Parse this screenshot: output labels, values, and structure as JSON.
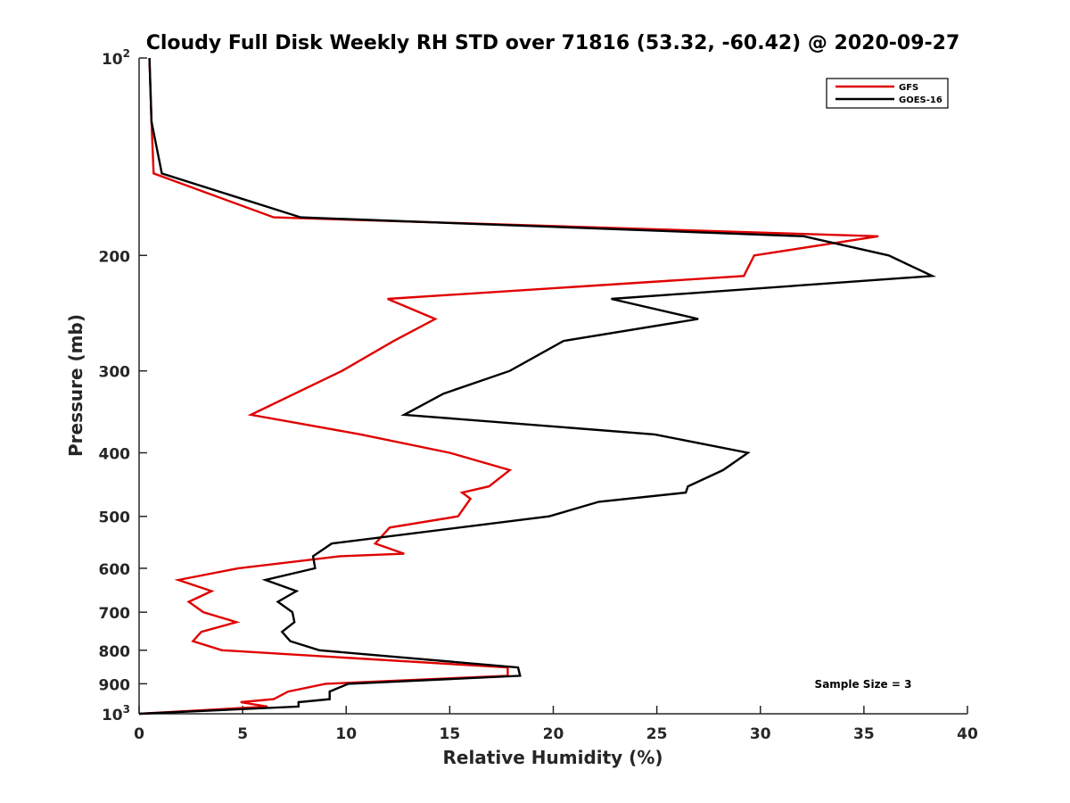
{
  "chart_data": {
    "type": "line",
    "title": "Cloudy Full Disk Weekly RH STD over 71816 (53.32, -60.42) @ 2020-09-27",
    "xlabel": "Relative Humidity (%)",
    "ylabel": "Pressure (mb)",
    "xlim": [
      0,
      40
    ],
    "ylim": [
      100,
      1000
    ],
    "y_scale": "log",
    "y_reversed": true,
    "grid": false,
    "legend_position": "top-right",
    "x_ticks": [
      "0",
      "5",
      "10",
      "15",
      "20",
      "25",
      "30",
      "35",
      "40"
    ],
    "y_ticks": [
      {
        "value": 100,
        "base": "10",
        "exp": "2"
      },
      {
        "value": 200,
        "label": "200"
      },
      {
        "value": 300,
        "label": "300"
      },
      {
        "value": 400,
        "label": "400"
      },
      {
        "value": 500,
        "label": "500"
      },
      {
        "value": 600,
        "label": "600"
      },
      {
        "value": 700,
        "label": "700"
      },
      {
        "value": 800,
        "label": "800"
      },
      {
        "value": 900,
        "label": "900"
      },
      {
        "value": 1000,
        "base": "10",
        "exp": "3"
      }
    ],
    "annotation": "Sample Size = 3",
    "series": [
      {
        "name": "GFS",
        "color": "#e00000",
        "points": [
          [
            0.5,
            100
          ],
          [
            0.6,
            125
          ],
          [
            0.7,
            150
          ],
          [
            6.5,
            175
          ],
          [
            35.7,
            187
          ],
          [
            29.7,
            200
          ],
          [
            29.2,
            215
          ],
          [
            12.0,
            233
          ],
          [
            14.3,
            250
          ],
          [
            12.3,
            270
          ],
          [
            9.8,
            300
          ],
          [
            5.4,
            350
          ],
          [
            10.7,
            375
          ],
          [
            15.0,
            400
          ],
          [
            17.9,
            425
          ],
          [
            16.9,
            450
          ],
          [
            15.6,
            460
          ],
          [
            16.0,
            470
          ],
          [
            15.4,
            500
          ],
          [
            12.1,
            520
          ],
          [
            11.4,
            550
          ],
          [
            12.8,
            570
          ],
          [
            9.7,
            575
          ],
          [
            4.8,
            600
          ],
          [
            1.9,
            625
          ],
          [
            3.5,
            650
          ],
          [
            2.4,
            675
          ],
          [
            3.1,
            700
          ],
          [
            4.7,
            725
          ],
          [
            3.0,
            750
          ],
          [
            2.6,
            775
          ],
          [
            4.0,
            800
          ],
          [
            17.8,
            850
          ],
          [
            17.8,
            875
          ],
          [
            9.0,
            900
          ],
          [
            7.2,
            925
          ],
          [
            6.5,
            950
          ],
          [
            4.9,
            960
          ],
          [
            6.2,
            975
          ],
          [
            0.0,
            1000
          ]
        ]
      },
      {
        "name": "GOES-16",
        "color": "#000000",
        "points": [
          [
            0.5,
            100
          ],
          [
            0.6,
            125
          ],
          [
            1.1,
            150
          ],
          [
            7.8,
            175
          ],
          [
            32.1,
            187
          ],
          [
            36.2,
            200
          ],
          [
            38.3,
            215
          ],
          [
            22.8,
            233
          ],
          [
            27.0,
            250
          ],
          [
            20.5,
            270
          ],
          [
            17.9,
            300
          ],
          [
            14.7,
            325
          ],
          [
            12.8,
            350
          ],
          [
            24.9,
            375
          ],
          [
            29.4,
            400
          ],
          [
            28.2,
            425
          ],
          [
            26.5,
            450
          ],
          [
            26.4,
            460
          ],
          [
            22.2,
            475
          ],
          [
            19.8,
            500
          ],
          [
            9.3,
            550
          ],
          [
            8.4,
            575
          ],
          [
            8.5,
            600
          ],
          [
            6.1,
            625
          ],
          [
            7.6,
            650
          ],
          [
            6.7,
            675
          ],
          [
            7.4,
            700
          ],
          [
            7.5,
            725
          ],
          [
            6.9,
            750
          ],
          [
            7.3,
            775
          ],
          [
            8.7,
            800
          ],
          [
            18.3,
            850
          ],
          [
            18.4,
            875
          ],
          [
            10.1,
            900
          ],
          [
            9.2,
            925
          ],
          [
            9.2,
            950
          ],
          [
            7.7,
            960
          ],
          [
            7.7,
            975
          ],
          [
            0.0,
            1000
          ]
        ]
      }
    ]
  }
}
